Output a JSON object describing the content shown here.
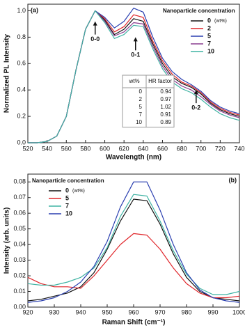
{
  "chart_data": [
    {
      "type": "line",
      "panel": "(a)",
      "xlabel": "Wavelength (nm)",
      "ylabel": "Normalized PL Intensity",
      "legend_title": "Nanoparticle concentration",
      "legend_unit": "(wt%)",
      "legend": "upper right",
      "xlim": [
        520,
        740
      ],
      "xticks": [
        520,
        540,
        560,
        580,
        600,
        620,
        640,
        660,
        680,
        700,
        720,
        740
      ],
      "ylim": [
        0,
        1.05
      ],
      "yticks": [
        {
          "value": 0,
          "label": "0.0"
        },
        0.2,
        0.4,
        0.6,
        0.8,
        {
          "value": 1,
          "label": "1.0"
        }
      ],
      "annotations": [
        "0-0",
        "0-1",
        "0-2"
      ],
      "table": {
        "columns": [
          "wt%",
          "HR factor"
        ],
        "rows": [
          [
            0,
            0.94
          ],
          [
            2,
            0.97
          ],
          [
            5,
            1.02
          ],
          [
            7,
            0.91
          ],
          [
            10,
            0.89
          ]
        ]
      },
      "x": [
        520,
        530,
        540,
        550,
        560,
        570,
        580,
        590,
        600,
        610,
        620,
        630,
        640,
        650,
        660,
        670,
        680,
        690,
        700,
        710,
        720,
        730,
        740
      ],
      "series": [
        {
          "name": "0",
          "color": "#111111",
          "values": [
            0,
            0,
            0.01,
            0.05,
            0.2,
            0.55,
            0.86,
            1.0,
            0.93,
            0.82,
            0.86,
            0.94,
            0.92,
            0.75,
            0.6,
            0.5,
            0.45,
            0.42,
            0.37,
            0.3,
            0.25,
            0.22,
            0.2
          ]
        },
        {
          "name": "2",
          "color": "#e0262b",
          "values": [
            0,
            0,
            0.01,
            0.05,
            0.2,
            0.55,
            0.86,
            1.0,
            0.94,
            0.84,
            0.88,
            0.97,
            0.95,
            0.77,
            0.62,
            0.52,
            0.46,
            0.43,
            0.38,
            0.31,
            0.26,
            0.23,
            0.21
          ]
        },
        {
          "name": "5",
          "color": "#2a3fb0",
          "values": [
            0,
            0,
            0.01,
            0.05,
            0.2,
            0.55,
            0.86,
            1.0,
            0.95,
            0.87,
            0.92,
            1.02,
            0.99,
            0.8,
            0.64,
            0.54,
            0.48,
            0.44,
            0.39,
            0.32,
            0.27,
            0.24,
            0.22
          ]
        },
        {
          "name": "7",
          "color": "#8a3d8f",
          "values": [
            0,
            0,
            0.01,
            0.05,
            0.2,
            0.55,
            0.86,
            1.0,
            0.92,
            0.81,
            0.84,
            0.91,
            0.9,
            0.73,
            0.58,
            0.48,
            0.43,
            0.4,
            0.35,
            0.29,
            0.24,
            0.21,
            0.19
          ]
        },
        {
          "name": "10",
          "color": "#3fb3a3",
          "values": [
            0,
            0,
            0.01,
            0.05,
            0.2,
            0.55,
            0.86,
            1.0,
            0.91,
            0.79,
            0.82,
            0.89,
            0.88,
            0.71,
            0.56,
            0.46,
            0.41,
            0.38,
            0.33,
            0.27,
            0.22,
            0.19,
            0.17
          ]
        }
      ]
    },
    {
      "type": "line",
      "panel": "(b)",
      "xlabel": "Raman Shift (cm⁻¹)",
      "ylabel": "Intensity (arb. units)",
      "legend_title": "Nanoparticle concentration",
      "legend_unit": "(wt%)",
      "legend": "upper left",
      "xlim": [
        920,
        1000
      ],
      "xticks": [
        920,
        930,
        940,
        950,
        960,
        970,
        980,
        990,
        1000
      ],
      "ylim": [
        0,
        0.085
      ],
      "yticks": [
        {
          "value": 0,
          "label": "0.00"
        },
        0.01,
        0.02,
        0.03,
        0.04,
        0.05,
        0.06,
        0.07,
        0.08
      ],
      "x": [
        920,
        925,
        930,
        935,
        940,
        945,
        950,
        955,
        960,
        965,
        970,
        975,
        980,
        985,
        990,
        995,
        1000
      ],
      "series": [
        {
          "name": "0",
          "color": "#111111",
          "values": [
            0.004,
            0.005,
            0.007,
            0.009,
            0.013,
            0.022,
            0.037,
            0.055,
            0.069,
            0.068,
            0.053,
            0.034,
            0.019,
            0.01,
            0.006,
            0.005,
            0.004
          ]
        },
        {
          "name": "5",
          "color": "#e0262b",
          "values": [
            0.019,
            0.015,
            0.013,
            0.013,
            0.012,
            0.02,
            0.03,
            0.04,
            0.047,
            0.046,
            0.037,
            0.025,
            0.015,
            0.009,
            0.006,
            0.006,
            0.007
          ]
        },
        {
          "name": "7",
          "color": "#3fb3a3",
          "values": [
            0.015,
            0.014,
            0.014,
            0.016,
            0.019,
            0.025,
            0.038,
            0.058,
            0.072,
            0.071,
            0.055,
            0.036,
            0.021,
            0.012,
            0.008,
            0.008,
            0.01
          ]
        },
        {
          "name": "10",
          "color": "#2a3fb0",
          "values": [
            0.003,
            0.004,
            0.006,
            0.01,
            0.016,
            0.026,
            0.042,
            0.064,
            0.08,
            0.08,
            0.062,
            0.04,
            0.022,
            0.011,
            0.006,
            0.004,
            0.003
          ]
        }
      ]
    }
  ]
}
